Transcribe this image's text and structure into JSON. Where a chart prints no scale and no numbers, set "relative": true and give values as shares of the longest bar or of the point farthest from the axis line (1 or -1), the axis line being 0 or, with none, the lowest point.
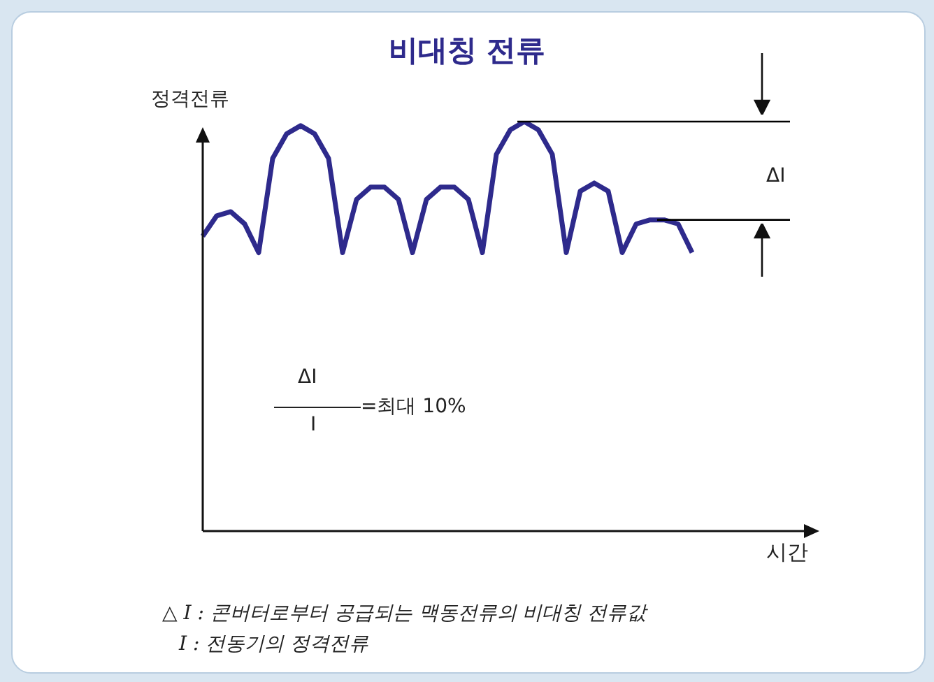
{
  "chart_data": {
    "type": "line",
    "title": "비대칭 전류",
    "ylabel": "정격전류",
    "xlabel": "시간",
    "relative": true,
    "marker": "none",
    "categories": [
      null,
      null,
      null,
      null,
      null,
      null,
      null,
      null,
      null,
      null,
      null,
      null,
      null,
      null,
      null,
      null,
      null,
      null,
      null,
      null,
      null,
      null,
      null,
      null,
      null,
      null,
      null,
      null,
      null,
      null,
      null,
      null,
      null,
      null,
      null,
      null
    ],
    "series": [
      {
        "color": "#2e2a8c",
        "values": [
          0.72,
          0.77,
          0.78,
          0.75,
          0.68,
          0.91,
          0.97,
          0.99,
          0.97,
          0.91,
          0.68,
          0.81,
          0.84,
          0.84,
          0.81,
          0.68,
          0.81,
          0.84,
          0.84,
          0.81,
          0.68,
          0.92,
          0.98,
          1,
          0.98,
          0.92,
          0.68,
          0.83,
          0.85,
          0.83,
          0.68,
          0.75,
          0.76,
          0.76,
          0.75,
          0.68
        ]
      }
    ],
    "ref_lines": [
      {
        "axis": "y",
        "value": 1,
        "color": "#000000"
      },
      {
        "axis": "y",
        "value": 0.76,
        "color": "#000000"
      }
    ],
    "annotations": [
      "ΔI",
      "ΔI",
      "I",
      "=최대 10%",
      "△ I : 콘버터로부터 공급되는 맥동전류의 비대칭 전류값",
      "I : 전동기의 정격전류"
    ]
  }
}
